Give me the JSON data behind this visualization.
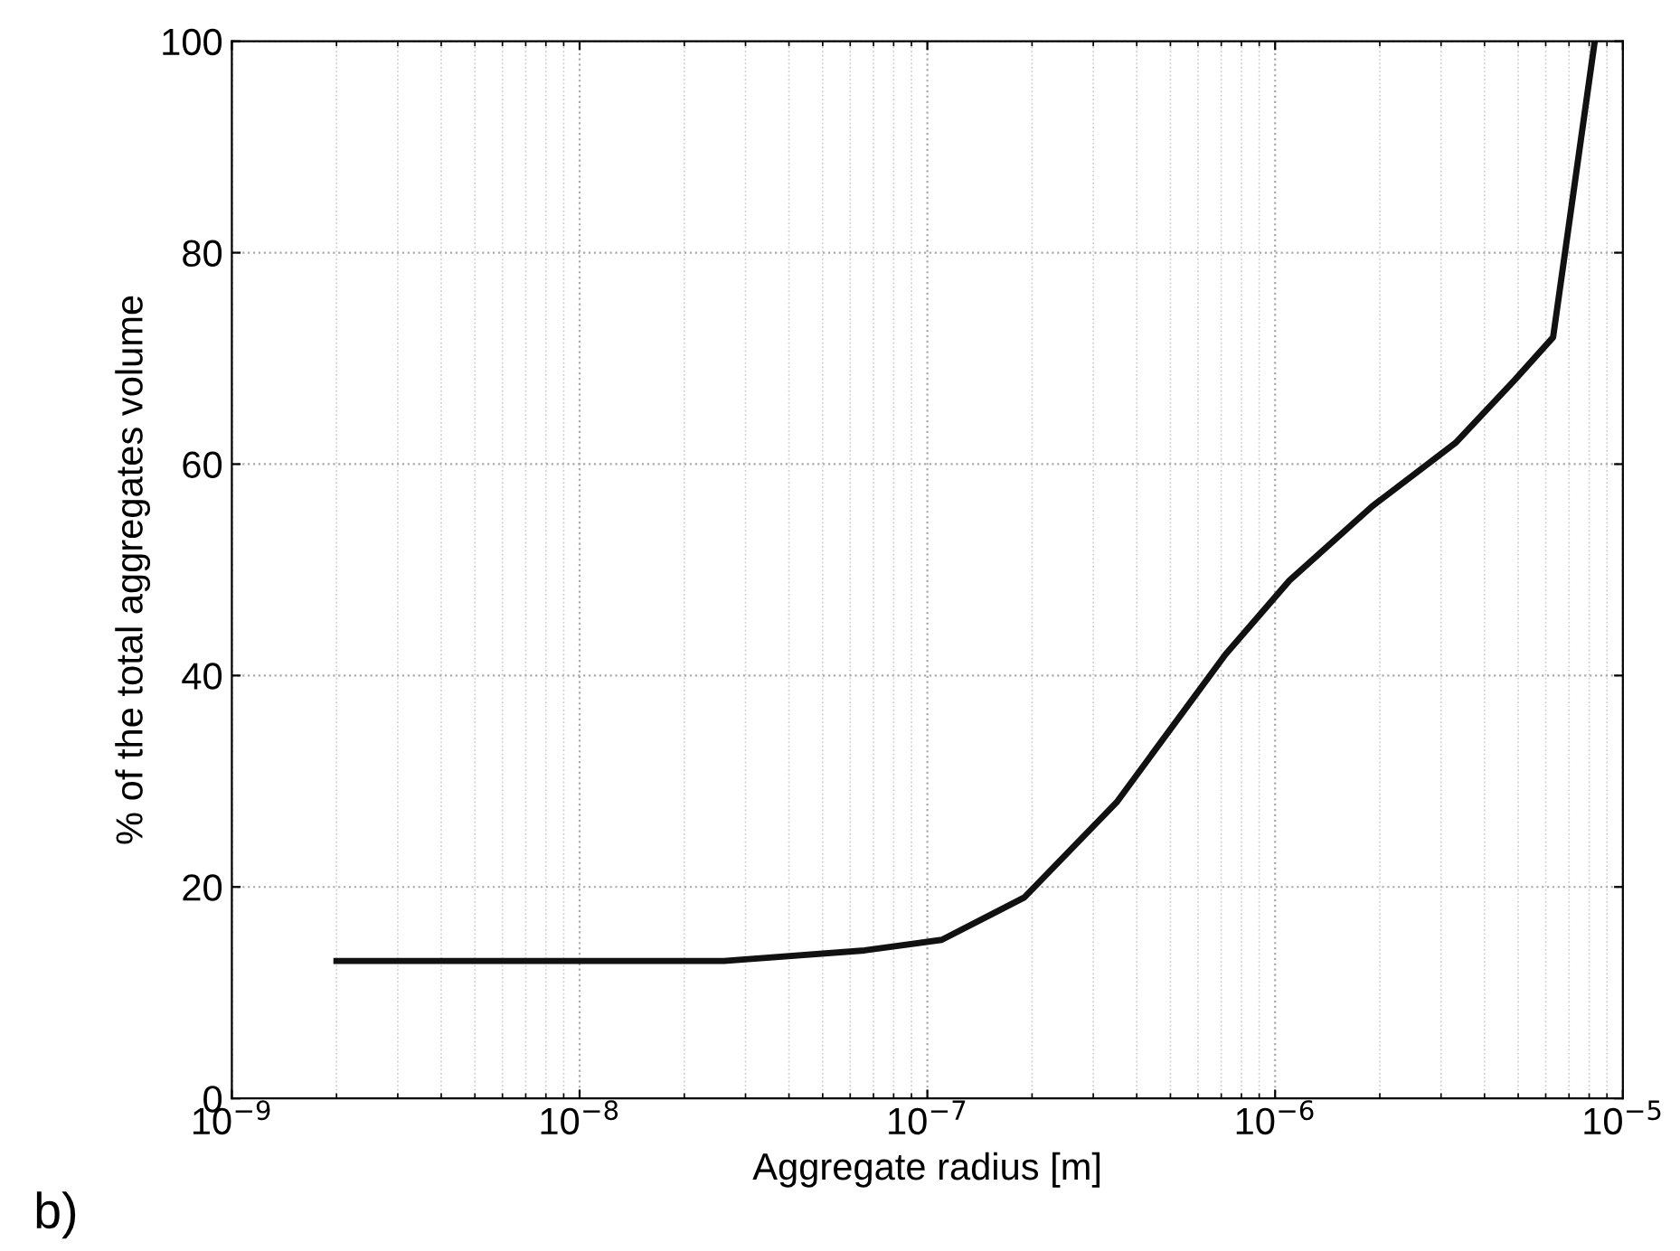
{
  "chart_data": {
    "type": "line",
    "xlabel": "Aggregate radius [m]",
    "ylabel": "% of the total aggregates volume",
    "annotations": [
      "b)"
    ],
    "log": "x",
    "grid": true,
    "marker": "none",
    "line_style": "solid",
    "xlim": [
      1e-09,
      1e-05
    ],
    "xticks": [
      {
        "value": 1e-09,
        "label": "10$^{−9}$"
      },
      {
        "value": 1e-08,
        "label": "10$^{−8}$"
      },
      {
        "value": 1e-07,
        "label": "10$^{−7}$"
      },
      {
        "value": 1e-06,
        "label": "10$^{−6}$"
      },
      {
        "value": 1e-05,
        "label": "10$^{−5}$"
      }
    ],
    "ylim": [
      0,
      100
    ],
    "yticks": [
      0,
      20,
      40,
      60,
      80,
      100
    ],
    "series": [
      {
        "color": "#111111",
        "x": [
          2e-09,
          1e-08,
          2.6e-08,
          6.6e-08,
          1.1e-07,
          1.9e-07,
          3.5e-07,
          7.2e-07,
          1.1e-06,
          1.9e-06,
          3.3e-06,
          4.9e-06,
          6.3e-06,
          8.3e-06
        ],
        "values": [
          13,
          13,
          13,
          14,
          15,
          19,
          28,
          42,
          49,
          56,
          62,
          68,
          72,
          100
        ]
      }
    ]
  }
}
